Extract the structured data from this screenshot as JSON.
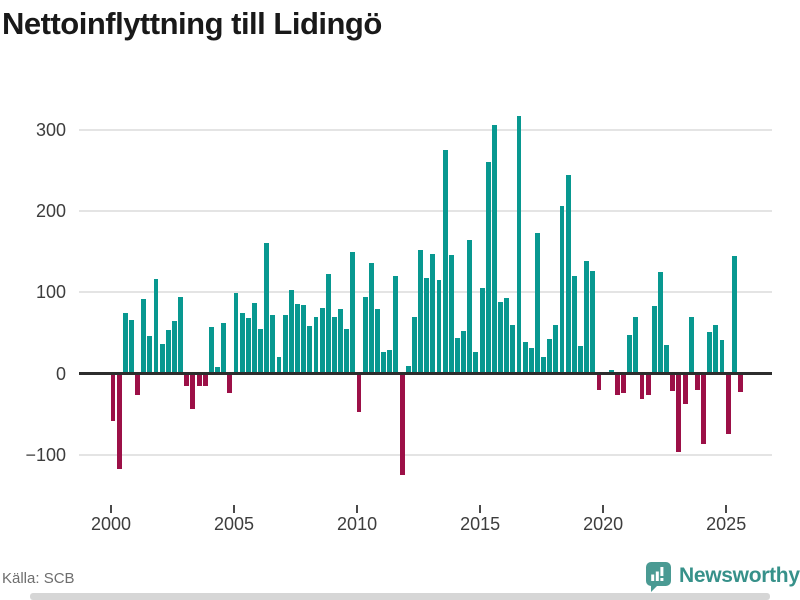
{
  "title": "Nettoinflyttning till Lidingö",
  "source": "Källa: SCB",
  "logo": {
    "text": "Newsworthy",
    "icon": "newsworthy-badge-icon"
  },
  "colors": {
    "positive": "#089890",
    "negative": "#9c1047",
    "logo_teal": "#4a9a93",
    "wordmark_teal": "#37918a",
    "title_text": "#191919",
    "axis_text": "#3d3d3d",
    "gridline": "#e4e4e4",
    "zero_line": "#2d2d2d"
  },
  "chart_data": {
    "type": "bar",
    "title": "Nettoinflyttning till Lidingö",
    "frequency": "quarterly",
    "start_period": "2000-Q1",
    "end_period": "2025-Q3",
    "grid": true,
    "ylim": [
      -150,
      340
    ],
    "y_ticks": [
      {
        "value": 300,
        "label": "300"
      },
      {
        "value": 200,
        "label": "200"
      },
      {
        "value": 100,
        "label": "100"
      },
      {
        "value": 0,
        "label": "0"
      },
      {
        "value": -100,
        "label": "−100"
      }
    ],
    "x_ticks": [
      {
        "year": 2000,
        "label": "2000"
      },
      {
        "year": 2005,
        "label": "2005"
      },
      {
        "year": 2010,
        "label": "2010"
      },
      {
        "year": 2015,
        "label": "2015"
      },
      {
        "year": 2020,
        "label": "2020"
      },
      {
        "year": 2025,
        "label": "2025"
      }
    ],
    "values": [
      -58,
      -117,
      75,
      66,
      -27,
      92,
      46,
      116,
      36,
      54,
      65,
      94,
      -15,
      -44,
      -15,
      -16,
      57,
      8,
      62,
      -24,
      99,
      75,
      68,
      87,
      55,
      161,
      72,
      20,
      72,
      103,
      85,
      84,
      59,
      70,
      81,
      123,
      70,
      79,
      55,
      150,
      -48,
      94,
      136,
      79,
      26,
      29,
      120,
      -125,
      9,
      70,
      152,
      117,
      147,
      115,
      275,
      146,
      44,
      52,
      165,
      26,
      105,
      260,
      306,
      88,
      93,
      60,
      317,
      39,
      31,
      173,
      20,
      42,
      60,
      206,
      244,
      120,
      34,
      138,
      126,
      -20,
      0,
      4,
      -27,
      -24,
      48,
      70,
      -31,
      -27,
      83,
      125,
      35,
      -21,
      -97,
      -38,
      70,
      -20,
      -87,
      51,
      60,
      41,
      -74,
      145,
      -23
    ]
  }
}
